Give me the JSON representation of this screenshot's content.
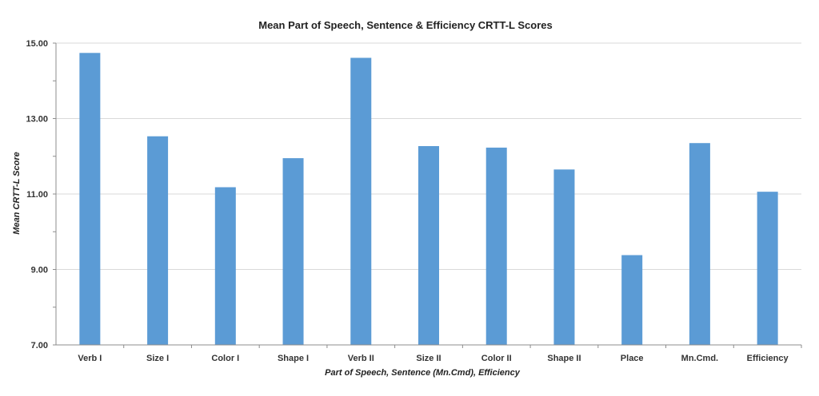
{
  "chart_data": {
    "type": "bar",
    "title": "Mean Part of Speech, Sentence & Efficiency CRTT-L Scores",
    "xlabel": "Part of Speech, Sentence (Mn.Cmd), Efficiency",
    "ylabel": "Mean CRTT-L Score",
    "categories": [
      "Verb I",
      "Size I",
      "Color I",
      "Shape I",
      "Verb II",
      "Size II",
      "Color II",
      "Shape II",
      "Place",
      "Mn.Cmd.",
      "Efficiency"
    ],
    "values": [
      14.74,
      12.53,
      11.18,
      11.95,
      14.61,
      12.27,
      12.23,
      11.65,
      9.38,
      12.35,
      11.06
    ],
    "ylim": [
      7,
      15
    ],
    "yticks": [
      "7.00",
      "9.00",
      "11.00",
      "13.00",
      "15.00"
    ],
    "ytick_values": [
      7,
      9,
      11,
      13,
      15
    ],
    "grid": true,
    "bar_color": "#5b9bd5",
    "legend": false
  }
}
